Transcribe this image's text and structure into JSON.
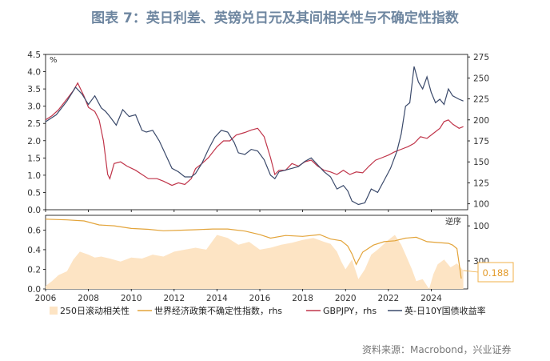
{
  "title": "图表 7：英日利差、英镑兑日元及其间相关性与不确定性指数",
  "source": "资料来源：Macrobond，兴业证券",
  "colors": {
    "title": "#6e86a0",
    "spread": "#3b4a6b",
    "gbpjpy": "#c0354a",
    "correlation": "#fde4c4",
    "uncertainty": "#e3a43a",
    "callout_border": "#f0b04a",
    "callout_text": "#e39b2b"
  },
  "chart_data": [
    {
      "type": "line",
      "panel": "top",
      "left_unit": "%",
      "left_ticks": [
        "0.0",
        "0.5",
        "1.0",
        "1.5",
        "2.0",
        "2.5",
        "3.0",
        "3.5",
        "4.0",
        "4.5"
      ],
      "left_ylim": [
        0,
        4.5
      ],
      "right_ticks": [
        "100",
        "125",
        "150",
        "175",
        "200",
        "225",
        "250",
        "275"
      ],
      "right_ylim": [
        93,
        278
      ],
      "series": [
        {
          "name": "英-日10Y国债收益率",
          "axis": "left",
          "x": [
            2006.0,
            2006.5,
            2007.0,
            2007.4,
            2007.7,
            2008.0,
            2008.3,
            2008.6,
            2008.8,
            2009.0,
            2009.3,
            2009.6,
            2009.9,
            2010.2,
            2010.5,
            2010.7,
            2011.0,
            2011.3,
            2011.6,
            2011.9,
            2012.2,
            2012.5,
            2012.8,
            2013.0,
            2013.3,
            2013.6,
            2013.9,
            2014.2,
            2014.5,
            2014.8,
            2015.0,
            2015.3,
            2015.6,
            2015.9,
            2016.2,
            2016.5,
            2016.7,
            2016.9,
            2017.2,
            2017.5,
            2017.8,
            2018.1,
            2018.4,
            2018.7,
            2019.0,
            2019.3,
            2019.6,
            2019.9,
            2020.1,
            2020.3,
            2020.6,
            2020.9,
            2021.2,
            2021.5,
            2021.8,
            2022.1,
            2022.4,
            2022.6,
            2022.8,
            2023.0,
            2023.2,
            2023.4,
            2023.6,
            2023.8,
            2024.0,
            2024.2,
            2024.4,
            2024.6,
            2024.8,
            2025.0,
            2025.3,
            2025.5
          ],
          "y": [
            2.55,
            2.75,
            3.15,
            3.55,
            3.35,
            3.05,
            3.3,
            2.95,
            2.85,
            2.7,
            2.45,
            2.9,
            2.7,
            2.75,
            2.3,
            2.25,
            2.3,
            2.0,
            1.6,
            1.2,
            1.1,
            0.95,
            0.95,
            1.05,
            1.35,
            1.75,
            2.1,
            2.3,
            2.25,
            1.95,
            1.65,
            1.6,
            1.75,
            1.7,
            1.45,
            1.0,
            0.9,
            1.1,
            1.15,
            1.2,
            1.25,
            1.4,
            1.5,
            1.3,
            1.1,
            0.95,
            0.6,
            0.7,
            0.55,
            0.25,
            0.15,
            0.2,
            0.6,
            0.5,
            0.85,
            1.2,
            1.7,
            2.2,
            3.0,
            3.1,
            4.15,
            3.7,
            3.5,
            3.85,
            3.4,
            3.1,
            3.2,
            3.05,
            3.5,
            3.3,
            3.2,
            3.15
          ]
        },
        {
          "name": "GBPJPY，rhs",
          "axis": "right",
          "x": [
            2006.0,
            2006.3,
            2006.6,
            2007.0,
            2007.3,
            2007.5,
            2007.8,
            2008.0,
            2008.3,
            2008.5,
            2008.7,
            2008.9,
            2009.0,
            2009.2,
            2009.5,
            2009.8,
            2010.2,
            2010.5,
            2010.8,
            2011.2,
            2011.5,
            2011.9,
            2012.2,
            2012.5,
            2012.8,
            2013.0,
            2013.3,
            2013.6,
            2014.0,
            2014.3,
            2014.6,
            2014.9,
            2015.3,
            2015.6,
            2015.9,
            2016.2,
            2016.5,
            2016.7,
            2016.9,
            2017.2,
            2017.5,
            2017.8,
            2018.1,
            2018.4,
            2018.7,
            2019.0,
            2019.3,
            2019.6,
            2019.9,
            2020.2,
            2020.5,
            2020.8,
            2021.1,
            2021.4,
            2021.7,
            2022.0,
            2022.3,
            2022.6,
            2022.9,
            2023.2,
            2023.5,
            2023.8,
            2024.1,
            2024.4,
            2024.6,
            2024.8,
            2025.0,
            2025.3,
            2025.5
          ],
          "y": [
            200,
            205,
            212,
            225,
            235,
            244,
            228,
            215,
            210,
            200,
            175,
            135,
            130,
            148,
            150,
            145,
            140,
            135,
            130,
            130,
            127,
            122,
            125,
            123,
            130,
            142,
            148,
            155,
            168,
            175,
            175,
            182,
            185,
            188,
            190,
            180,
            155,
            135,
            140,
            140,
            148,
            145,
            150,
            152,
            145,
            140,
            138,
            135,
            140,
            135,
            138,
            137,
            145,
            152,
            155,
            158,
            162,
            165,
            168,
            172,
            180,
            178,
            184,
            190,
            198,
            200,
            195,
            190,
            192
          ]
        }
      ]
    },
    {
      "type": "area",
      "panel": "bottom",
      "x_ticks": [
        "2006",
        "2008",
        "2010",
        "2012",
        "2014",
        "2016",
        "2018",
        "2020",
        "2022",
        "2024"
      ],
      "xlim": [
        2006,
        2025.7
      ],
      "left_ticks": [
        "0.0",
        "0.2",
        "0.4",
        "0.6"
      ],
      "left_ylim": [
        0,
        0.75
      ],
      "right_ticks": [
        "100",
        "300"
      ],
      "right_label": "逆序",
      "right_note": "uncertainty index plotted on reversed scale (~40 at top, ~460 at bottom)",
      "series": [
        {
          "name": "250日滚动相关性",
          "axis": "left",
          "x": [
            2006.0,
            2006.3,
            2006.6,
            2007.0,
            2007.3,
            2007.6,
            2008.0,
            2008.3,
            2008.6,
            2009.0,
            2009.5,
            2010.0,
            2010.5,
            2011.0,
            2011.5,
            2012.0,
            2012.5,
            2013.0,
            2013.5,
            2014.0,
            2014.5,
            2015.0,
            2015.5,
            2016.0,
            2016.5,
            2017.0,
            2017.5,
            2018.0,
            2018.5,
            2019.0,
            2019.3,
            2019.6,
            2019.8,
            2020.0,
            2020.3,
            2020.6,
            2020.9,
            2021.2,
            2021.5,
            2021.8,
            2022.0,
            2022.3,
            2022.6,
            2022.9,
            2023.1,
            2023.3,
            2023.6,
            2023.9,
            2024.1,
            2024.3,
            2024.6,
            2024.9,
            2025.2,
            2025.5
          ],
          "y": [
            0.03,
            0.08,
            0.14,
            0.18,
            0.3,
            0.38,
            0.35,
            0.32,
            0.33,
            0.31,
            0.28,
            0.32,
            0.31,
            0.35,
            0.33,
            0.38,
            0.4,
            0.42,
            0.4,
            0.55,
            0.52,
            0.45,
            0.48,
            0.4,
            0.42,
            0.45,
            0.47,
            0.5,
            0.52,
            0.48,
            0.46,
            0.38,
            0.28,
            0.2,
            0.3,
            0.1,
            0.2,
            0.35,
            0.4,
            0.46,
            0.5,
            0.55,
            0.45,
            0.3,
            0.2,
            0.08,
            0.1,
            0.0,
            0.15,
            0.25,
            0.3,
            0.22,
            0.26,
            0.188
          ]
        },
        {
          "name": "世界经济政策不确定性指数，rhs",
          "axis": "right",
          "x": [
            2006.0,
            2007.0,
            2007.8,
            2008.5,
            2009.2,
            2010.0,
            2010.8,
            2011.5,
            2012.3,
            2013.0,
            2013.8,
            2014.5,
            2015.3,
            2016.0,
            2016.5,
            2017.2,
            2018.0,
            2018.8,
            2019.3,
            2019.8,
            2020.1,
            2020.3,
            2020.5,
            2020.8,
            2021.3,
            2021.8,
            2022.3,
            2022.8,
            2023.3,
            2023.8,
            2024.3,
            2024.8,
            2025.0,
            2025.2,
            2025.4
          ],
          "y": [
            62,
            66,
            72,
            95,
            100,
            115,
            120,
            128,
            125,
            122,
            118,
            118,
            130,
            150,
            170,
            155,
            160,
            150,
            175,
            185,
            215,
            260,
            320,
            250,
            210,
            190,
            185,
            170,
            165,
            190,
            195,
            200,
            210,
            230,
            400
          ]
        }
      ]
    }
  ],
  "legend": [
    {
      "label": "250日滚动相关性",
      "kind": "area"
    },
    {
      "label": "世界经济政策不确定性指数，rhs",
      "kind": "line"
    },
    {
      "label": "GBPJPY，rhs",
      "kind": "line"
    },
    {
      "label": "英-日10Y国债收益率",
      "kind": "line"
    }
  ],
  "callout": {
    "value": "0.188"
  }
}
